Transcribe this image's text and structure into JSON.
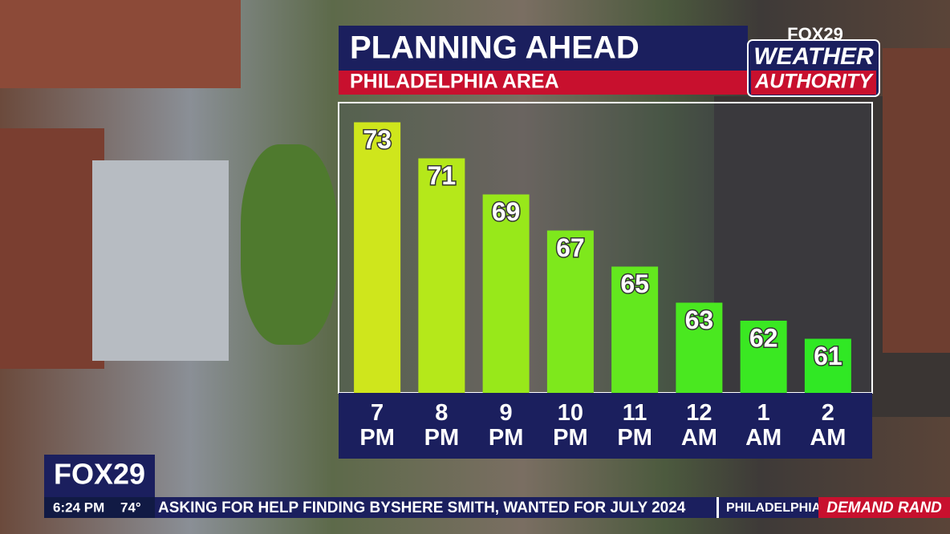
{
  "chart_data": {
    "type": "bar",
    "title": "PLANNING AHEAD",
    "subtitle": "PHILADELPHIA AREA",
    "categories": [
      "7 PM",
      "8 PM",
      "9 PM",
      "10 PM",
      "11 PM",
      "12 AM",
      "1 AM",
      "2 AM"
    ],
    "values": [
      73,
      71,
      69,
      67,
      65,
      63,
      62,
      61
    ],
    "colors": [
      "#cfe61c",
      "#b5e81a",
      "#98e81a",
      "#7ee81c",
      "#63e81e",
      "#4ae820",
      "#3ae822",
      "#30e824"
    ],
    "ylim": [
      58,
      74
    ],
    "grid": false
  },
  "branding": {
    "station": "FOX29",
    "segment_line1": "WEATHER",
    "segment_line2": "AUTHORITY"
  },
  "bug": {
    "station": "FOX29",
    "time": "6:24 PM",
    "temperature": "74°"
  },
  "ticker": {
    "headline": "ASKING FOR HELP FINDING BYSHERE SMITH, WANTED FOR JULY 2024",
    "location": "PHILADELPHIA",
    "promo": "DEMAND RAND"
  }
}
